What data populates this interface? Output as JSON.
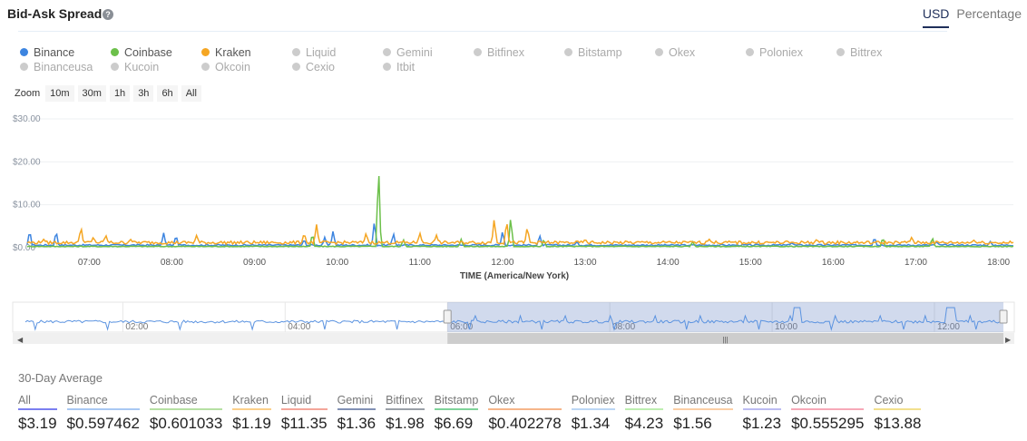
{
  "header": {
    "title": "Bid-Ask Spread",
    "help_icon": "?",
    "unit_tabs": [
      {
        "label": "USD",
        "active": true
      },
      {
        "label": "Percentage",
        "active": false
      }
    ]
  },
  "legend": [
    {
      "name": "Binance",
      "on": true,
      "color": "#3d85e0"
    },
    {
      "name": "Coinbase",
      "on": true,
      "color": "#6cc04a"
    },
    {
      "name": "Kraken",
      "on": true,
      "color": "#f5a623"
    },
    {
      "name": "Liquid",
      "on": false
    },
    {
      "name": "Gemini",
      "on": false
    },
    {
      "name": "Bitfinex",
      "on": false
    },
    {
      "name": "Bitstamp",
      "on": false
    },
    {
      "name": "Okex",
      "on": false
    },
    {
      "name": "Poloniex",
      "on": false
    },
    {
      "name": "Bittrex",
      "on": false
    },
    {
      "name": "Binanceusa",
      "on": false
    },
    {
      "name": "Kucoin",
      "on": false
    },
    {
      "name": "Okcoin",
      "on": false
    },
    {
      "name": "Cexio",
      "on": false
    },
    {
      "name": "Itbit",
      "on": false
    }
  ],
  "zoom": {
    "label": "Zoom",
    "buttons": [
      "10m",
      "30m",
      "1h",
      "3h",
      "6h",
      "All"
    ]
  },
  "chart_data": {
    "type": "line",
    "xlabel": "TIME (America/New York)",
    "ylabel": "",
    "x_range_hours": [
      6.25,
      18.18
    ],
    "ylim": [
      0,
      30
    ],
    "yticks": [
      "$0.00",
      "$10.00",
      "$20.00",
      "$30.00"
    ],
    "yvalues": [
      0,
      10,
      20,
      30
    ],
    "xticks": [
      "07:00",
      "08:00",
      "09:00",
      "10:00",
      "11:00",
      "12:00",
      "13:00",
      "14:00",
      "15:00",
      "16:00",
      "17:00",
      "18:00"
    ],
    "xtick_hours": [
      7,
      8,
      9,
      10,
      11,
      12,
      13,
      14,
      15,
      16,
      17,
      18
    ],
    "series": [
      {
        "name": "Binance",
        "color": "#3d85e0",
        "baseline": 0.6,
        "spikes": [
          [
            6.28,
            4.2
          ],
          [
            6.6,
            4
          ],
          [
            7.9,
            3.5
          ],
          [
            8.05,
            3
          ],
          [
            9.6,
            2
          ],
          [
            9.85,
            2.5
          ],
          [
            9.95,
            4
          ],
          [
            10.45,
            6.5
          ],
          [
            10.68,
            3.5
          ],
          [
            12.0,
            4
          ],
          [
            12.45,
            3
          ],
          [
            12.9,
            1.5
          ],
          [
            15.5,
            1.2
          ],
          [
            16.5,
            2.5
          ],
          [
            17.25,
            1.5
          ],
          [
            17.9,
            1.5
          ]
        ]
      },
      {
        "name": "Coinbase",
        "color": "#6cc04a",
        "baseline": 0.3,
        "spikes": [
          [
            9.7,
            3.5
          ],
          [
            10.5,
            20
          ],
          [
            10.8,
            2
          ],
          [
            11.5,
            2
          ],
          [
            12.1,
            7.5
          ],
          [
            12.5,
            2
          ],
          [
            14.3,
            1.5
          ],
          [
            16.6,
            2.5
          ],
          [
            17.2,
            2.5
          ]
        ]
      },
      {
        "name": "Kraken",
        "color": "#f5a623",
        "baseline": 1.2,
        "spikes": [
          [
            6.45,
            2
          ],
          [
            6.9,
            5
          ],
          [
            7.05,
            2.5
          ],
          [
            7.2,
            3
          ],
          [
            7.5,
            2
          ],
          [
            8.3,
            3
          ],
          [
            9.6,
            3.5
          ],
          [
            9.75,
            5.5
          ],
          [
            10.35,
            3.5
          ],
          [
            11.0,
            3.5
          ],
          [
            11.2,
            3
          ],
          [
            11.9,
            7
          ],
          [
            12.05,
            6.5
          ],
          [
            12.3,
            5
          ],
          [
            13.0,
            2
          ],
          [
            14.5,
            2
          ],
          [
            15.8,
            2
          ],
          [
            16.95,
            2.5
          ],
          [
            17.7,
            1.8
          ]
        ]
      }
    ]
  },
  "navigator": {
    "ticks": [
      "02:00",
      "04:00",
      "06:00",
      "08:00",
      "10:00",
      "12:00"
    ],
    "tick_hours": [
      2,
      4,
      6,
      8,
      10,
      12
    ],
    "range_hours": [
      0.8,
      12.85
    ],
    "selected_hours": [
      6.0,
      12.85
    ]
  },
  "averages": {
    "title": "30-Day Average",
    "items": [
      {
        "label": "All",
        "value": "$3.19",
        "color": "#7b7ff0"
      },
      {
        "label": "Binance",
        "value": "$0.597462",
        "color": "#a9c8f3"
      },
      {
        "label": "Coinbase",
        "value": "$0.601033",
        "color": "#b6e0a3"
      },
      {
        "label": "Kraken",
        "value": "$1.19",
        "color": "#fbd08a"
      },
      {
        "label": "Liquid",
        "value": "$11.35",
        "color": "#f4a69a"
      },
      {
        "label": "Gemini",
        "value": "$1.36",
        "color": "#8291b5"
      },
      {
        "label": "Bitfinex",
        "value": "$1.98",
        "color": "#9aa0a8"
      },
      {
        "label": "Bitstamp",
        "value": "$6.69",
        "color": "#7fd39a"
      },
      {
        "label": "Okex",
        "value": "$0.402278",
        "color": "#f6b68a"
      },
      {
        "label": "Poloniex",
        "value": "$1.34",
        "color": "#bcd7f5"
      },
      {
        "label": "Bittrex",
        "value": "$4.23",
        "color": "#bdeeb0"
      },
      {
        "label": "Binanceusa",
        "value": "$1.56",
        "color": "#fbcfa6"
      },
      {
        "label": "Kucoin",
        "value": "$1.23",
        "color": "#bcbcf2"
      },
      {
        "label": "Okcoin",
        "value": "$0.555295",
        "color": "#f7a9b8"
      },
      {
        "label": "Cexio",
        "value": "$13.88",
        "color": "#f2e08e"
      }
    ]
  }
}
